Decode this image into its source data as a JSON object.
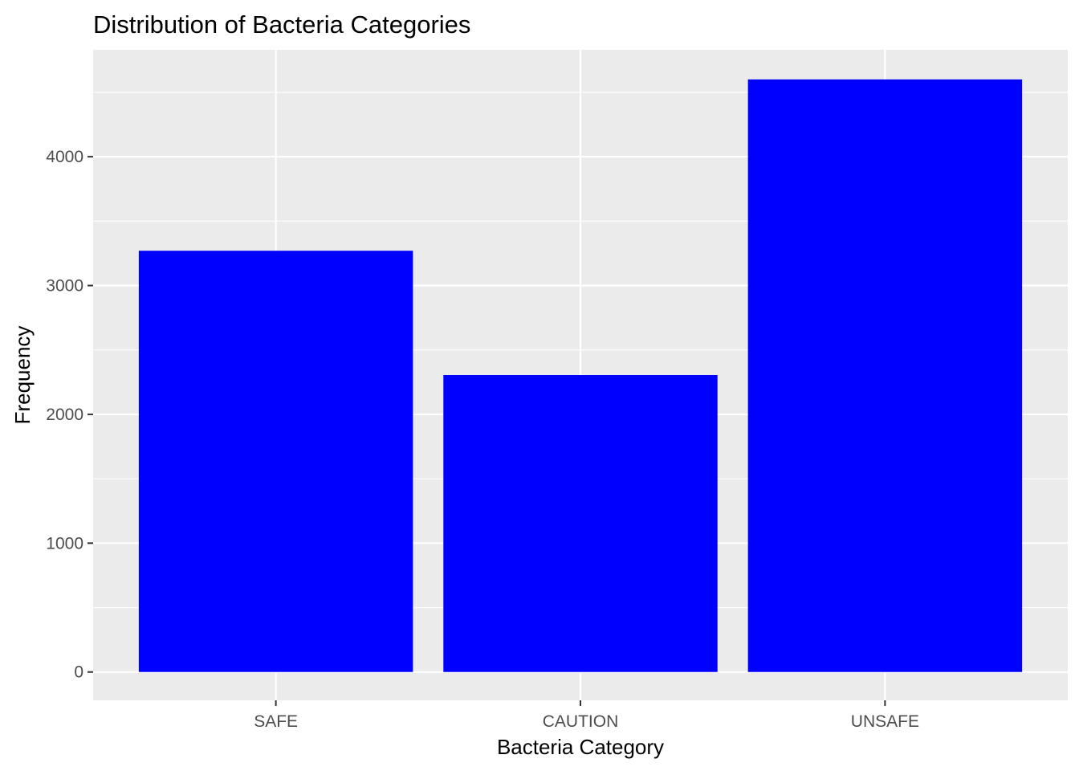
{
  "chart_data": {
    "type": "bar",
    "title": "Distribution of Bacteria Categories",
    "xlabel": "Bacteria Category",
    "ylabel": "Frequency",
    "categories": [
      "SAFE",
      "CAUTION",
      "UNSAFE"
    ],
    "values": [
      3270,
      2305,
      4600
    ],
    "ylim": [
      -220,
      4830
    ],
    "yticks": [
      0,
      1000,
      2000,
      3000,
      4000
    ],
    "grid": true,
    "legend": "none",
    "colors": {
      "bar": "#0000ff",
      "panel": "#ebebeb",
      "grid": "#ffffff",
      "tick_text": "#4d4d4d",
      "tick_mark": "#333333"
    }
  }
}
